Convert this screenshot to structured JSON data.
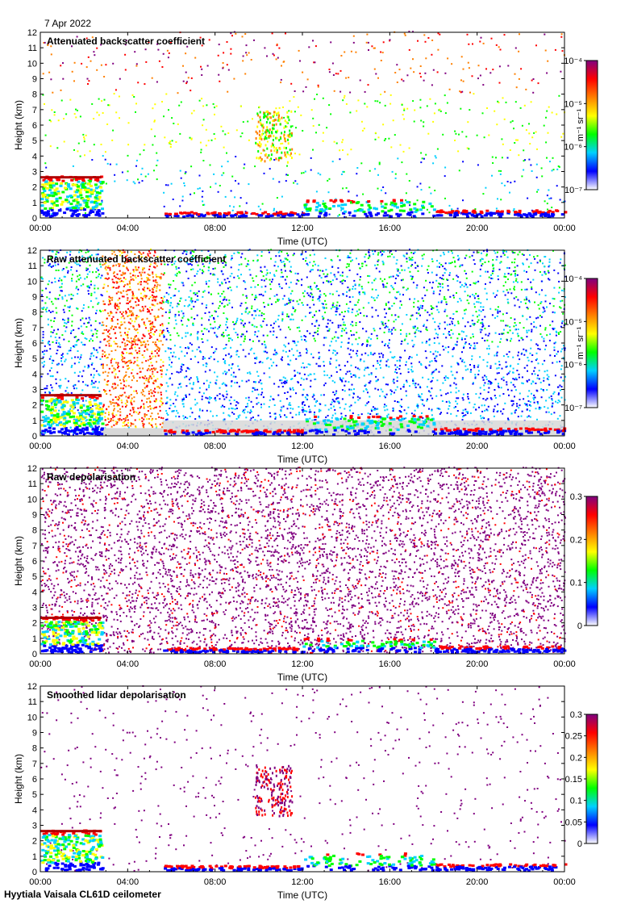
{
  "header": {
    "date": "7 Apr 2022"
  },
  "footer": {
    "site_instrument": "Hyytiala Vaisala CL61D ceilometer"
  },
  "colors": {
    "colormap": [
      "#ffffff",
      "#0000ff",
      "#00d0ff",
      "#00ff00",
      "#ffff00",
      "#ff8000",
      "#ff0000",
      "#800080"
    ],
    "no_signal": "#d8d8d8"
  },
  "chart_data": [
    {
      "type": "heatmap",
      "title": "Attenuated backscatter coefficient",
      "xlabel": "Time (UTC)",
      "ylabel": "Height (km)",
      "xticks": [
        "00:00",
        "04:00",
        "08:00",
        "12:00",
        "16:00",
        "20:00",
        "00:00"
      ],
      "xlim": [
        0,
        24
      ],
      "ylim": [
        0,
        12
      ],
      "yticks": [
        0,
        1,
        2,
        3,
        4,
        5,
        6,
        7,
        8,
        9,
        10,
        11,
        12
      ],
      "colorbar": {
        "scale": "log",
        "label": "m⁻¹ sr⁻¹",
        "ticks": [
          "10⁻⁷",
          "10⁻⁶",
          "10⁻⁵",
          "10⁻⁴"
        ],
        "range": [
          1e-07,
          0.0001
        ]
      },
      "features": [
        {
          "kind": "cloud",
          "t": [
            0,
            2.8
          ],
          "h": [
            0.2,
            2.6
          ]
        },
        {
          "kind": "cloud",
          "t": [
            9.8,
            11.5
          ],
          "h": [
            3.5,
            6.8
          ]
        },
        {
          "kind": "boundary_layer_top",
          "t": [
            12,
            24
          ],
          "h": [
            0.3,
            1.5
          ]
        }
      ]
    },
    {
      "type": "heatmap",
      "title": "Raw attenuated backscatter coefficient",
      "xlabel": "Time (UTC)",
      "ylabel": "Height (km)",
      "xticks": [
        "00:00",
        "04:00",
        "08:00",
        "12:00",
        "16:00",
        "20:00",
        "00:00"
      ],
      "xlim": [
        0,
        24
      ],
      "ylim": [
        0,
        12
      ],
      "yticks": [
        0,
        1,
        2,
        3,
        4,
        5,
        6,
        7,
        8,
        9,
        10,
        11,
        12
      ],
      "colorbar": {
        "scale": "log",
        "label": "m⁻¹ sr⁻¹",
        "ticks": [
          "10⁻⁷",
          "10⁻⁶",
          "10⁻⁵",
          "10⁻⁴"
        ],
        "range": [
          1e-07,
          0.0001
        ]
      },
      "features": [
        {
          "kind": "noisy_column",
          "t": [
            2.8,
            5.6
          ],
          "h": [
            0.5,
            12
          ]
        },
        {
          "kind": "cloud",
          "t": [
            0,
            2.8
          ],
          "h": [
            0.2,
            2.6
          ]
        }
      ]
    },
    {
      "type": "heatmap",
      "title": "Raw depolarisation",
      "xlabel": "Time (UTC)",
      "ylabel": "Height (km)",
      "xticks": [
        "00:00",
        "04:00",
        "08:00",
        "12:00",
        "16:00",
        "20:00",
        "00:00"
      ],
      "xlim": [
        0,
        24
      ],
      "ylim": [
        0,
        12
      ],
      "yticks": [
        0,
        1,
        2,
        3,
        4,
        5,
        6,
        7,
        8,
        9,
        10,
        11,
        12
      ],
      "colorbar": {
        "scale": "linear",
        "label": "",
        "ticks": [
          "0",
          "0.1",
          "0.2",
          "0.3"
        ],
        "range": [
          0,
          0.3
        ]
      },
      "features": [
        {
          "kind": "noise",
          "t": [
            0,
            24
          ],
          "h": [
            0,
            12
          ]
        }
      ]
    },
    {
      "type": "heatmap",
      "title": "Smoothed lidar depolarisation",
      "xlabel": "Time (UTC)",
      "ylabel": "Height (km)",
      "xticks": [
        "00:00",
        "04:00",
        "08:00",
        "12:00",
        "16:00",
        "20:00",
        "00:00"
      ],
      "xlim": [
        0,
        24
      ],
      "ylim": [
        0,
        12
      ],
      "yticks": [
        0,
        1,
        2,
        3,
        4,
        5,
        6,
        7,
        8,
        9,
        10,
        11,
        12
      ],
      "colorbar": {
        "scale": "linear",
        "label": "",
        "ticks": [
          "0",
          "0.05",
          "0.1",
          "0.15",
          "0.2",
          "0.25",
          "0.3"
        ],
        "range": [
          0,
          0.3
        ]
      },
      "features": [
        {
          "kind": "cloud",
          "t": [
            0,
            2.8
          ],
          "h": [
            0.2,
            2.6
          ]
        },
        {
          "kind": "cloud",
          "t": [
            9.8,
            11.5
          ],
          "h": [
            3.5,
            6.8
          ]
        },
        {
          "kind": "boundary_layer_top",
          "t": [
            12,
            24
          ],
          "h": [
            0.3,
            1.2
          ]
        }
      ]
    }
  ]
}
